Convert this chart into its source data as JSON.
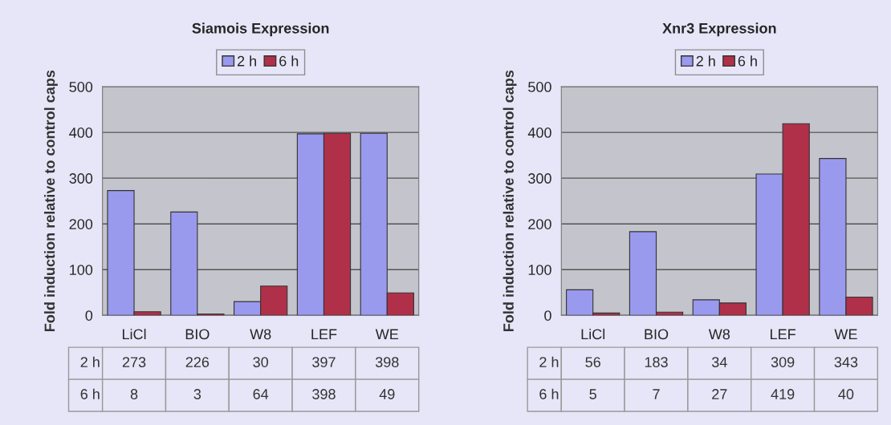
{
  "chart_data": [
    {
      "type": "bar",
      "title": "Siamois Expression",
      "ylabel": "Fold induction relative to control caps",
      "categories": [
        "LiCl",
        "BIO",
        "W8",
        "LEF",
        "WE"
      ],
      "series": [
        {
          "name": "2 h",
          "color": "#9999ee",
          "values": [
            273,
            226,
            30,
            397,
            398
          ]
        },
        {
          "name": "6 h",
          "color": "#b0304a",
          "values": [
            8,
            3,
            64,
            398,
            49
          ]
        }
      ],
      "ylim": [
        0,
        500
      ],
      "yticks": [
        0,
        100,
        200,
        300,
        400,
        500
      ],
      "grid": "y",
      "legend": "top",
      "data_labels": true
    },
    {
      "type": "bar",
      "title": "Xnr3 Expression",
      "ylabel": "Fold induction relative to control caps",
      "categories": [
        "LiCl",
        "BIO",
        "W8",
        "LEF",
        "WE"
      ],
      "series": [
        {
          "name": "2 h",
          "color": "#9999ee",
          "values": [
            56,
            183,
            34,
            309,
            343
          ]
        },
        {
          "name": "6 h",
          "color": "#b0304a",
          "values": [
            5,
            7,
            27,
            419,
            40
          ]
        }
      ],
      "ylim": [
        0,
        500
      ],
      "yticks": [
        0,
        100,
        200,
        300,
        400,
        500
      ],
      "grid": "y",
      "legend": "top",
      "data_labels": true
    }
  ]
}
